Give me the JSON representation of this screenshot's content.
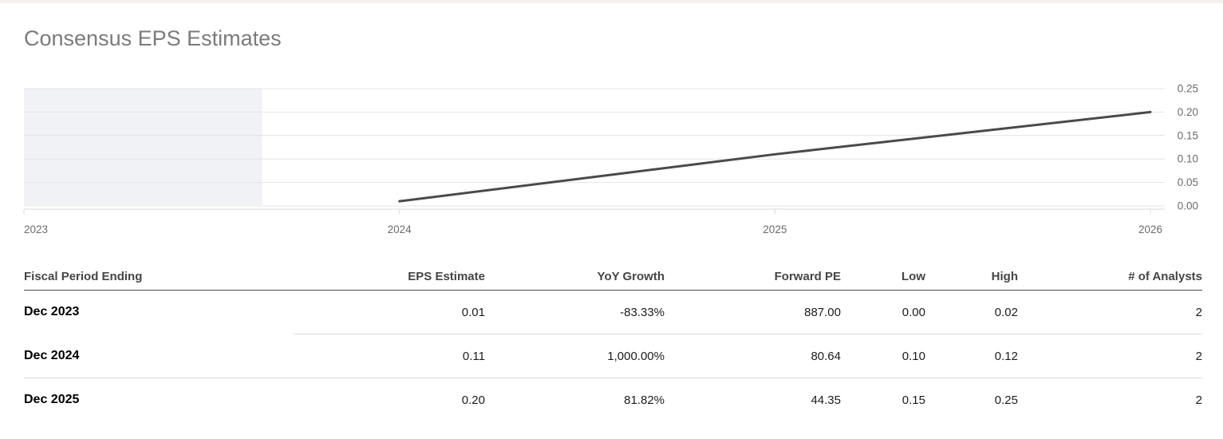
{
  "page": {
    "title": "Consensus EPS Estimates"
  },
  "chart_data": {
    "type": "line",
    "title": "Consensus EPS Estimates",
    "xlabel": "",
    "ylabel": "",
    "grid": true,
    "legend": "none",
    "x_range": [
      2023,
      2026
    ],
    "y_range": [
      0,
      0.25
    ],
    "x_ticks": [
      2023,
      2024,
      2025,
      2026
    ],
    "y_ticks": [
      0.0,
      0.05,
      0.1,
      0.15,
      0.2,
      0.25
    ],
    "shaded_region": {
      "x_start": 2023,
      "x_end": 2023.635,
      "note": "historical period shading"
    },
    "series": [
      {
        "name": "EPS Estimate",
        "x": [
          2024,
          2025,
          2026
        ],
        "values": [
          0.01,
          0.11,
          0.2
        ]
      }
    ],
    "colors": {
      "line": "#4a4a4a",
      "grid": "#e4e4e4",
      "axis": "#d8d8d8",
      "shade": "#f0f2f6",
      "axis_label": "#6b6b6b"
    }
  },
  "table": {
    "columns": [
      {
        "label": "Fiscal Period Ending",
        "align": "left"
      },
      {
        "label": "EPS Estimate",
        "align": "right"
      },
      {
        "label": "YoY Growth",
        "align": "right"
      },
      {
        "label": "Forward PE",
        "align": "right"
      },
      {
        "label": "Low",
        "align": "right"
      },
      {
        "label": "High",
        "align": "right"
      },
      {
        "label": "# of Analysts",
        "align": "right"
      }
    ],
    "rows": [
      {
        "period": "Dec 2023",
        "values": [
          "0.01",
          "-83.33%",
          "887.00",
          "0.00",
          "0.02",
          "2"
        ]
      },
      {
        "period": "Dec 2024",
        "values": [
          "0.11",
          "1,000.00%",
          "80.64",
          "0.10",
          "0.12",
          "2"
        ]
      },
      {
        "period": "Dec 2025",
        "values": [
          "0.20",
          "81.82%",
          "44.35",
          "0.15",
          "0.25",
          "2"
        ]
      }
    ]
  }
}
